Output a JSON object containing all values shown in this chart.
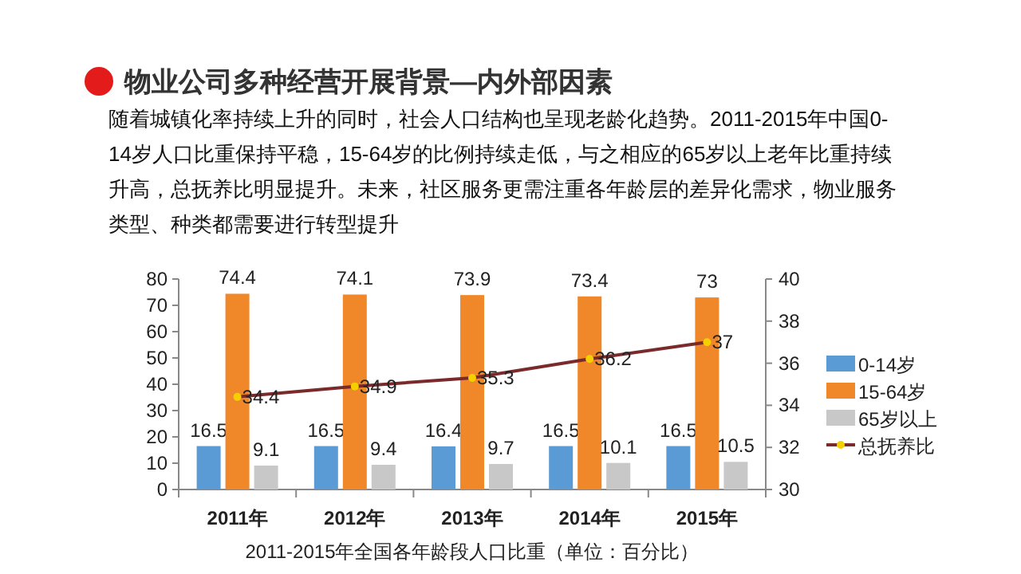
{
  "chart_data": {
    "type": "bar",
    "title": "物业公司多种经营开展背景—内外部因素",
    "subtitle": "随着城镇化率持续上升的同时，社会人口结构也呈现老龄化趋势。2011-2015年中国0-14岁人口比重保持平稳，15-64岁的比例持续走低，与之相应的65岁以上老年比重持续升高，总抚养比明显提升。未来，社区服务更需注重各年龄层的差异化需求，物业服务类型、种类都需要进行转型提升",
    "categories": [
      "2011年",
      "2012年",
      "2013年",
      "2014年",
      "2015年"
    ],
    "series": [
      {
        "name": "0-14岁",
        "color": "#5b9bd5",
        "values": [
          16.5,
          16.5,
          16.4,
          16.5,
          16.5
        ]
      },
      {
        "name": "15-64岁",
        "color": "#f0882a",
        "values": [
          74.4,
          74.1,
          73.9,
          73.4,
          73
        ]
      },
      {
        "name": "65岁以上",
        "color": "#c8c8c8",
        "values": [
          9.1,
          9.4,
          9.7,
          10.1,
          10.5
        ]
      },
      {
        "name": "总抚养比",
        "type": "line",
        "axis": "y2",
        "color": "#7a2a2a",
        "values": [
          34.4,
          34.9,
          35.3,
          36.2,
          37
        ]
      }
    ],
    "ylim": [
      0,
      80
    ],
    "yticks": [
      0,
      10,
      20,
      30,
      40,
      50,
      60,
      70,
      80
    ],
    "y2lim": [
      30,
      40
    ],
    "y2ticks": [
      30,
      32,
      34,
      36,
      38,
      40
    ],
    "data_labels": true,
    "legend": "right",
    "marker": "circle",
    "annotations": [
      "2011-2015年全国各年龄段人口比重（单位：百分比）"
    ]
  }
}
